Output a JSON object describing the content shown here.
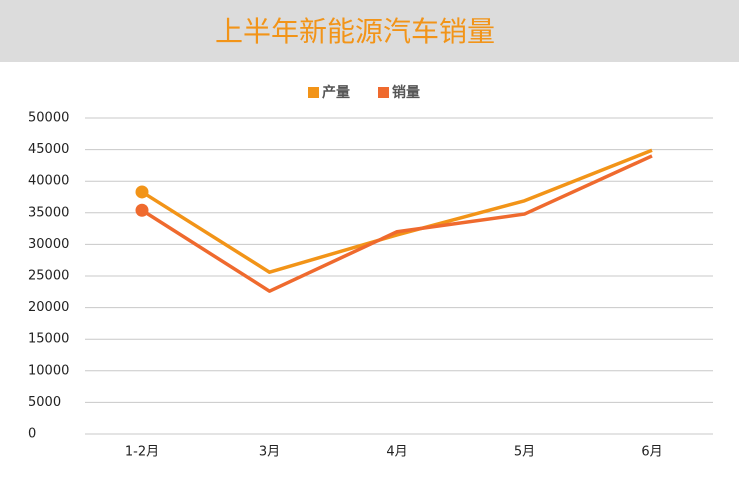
{
  "chart_data": {
    "type": "line",
    "title": "上半年新能源汽车销量",
    "categories": [
      "1-2月",
      "3月",
      "4月",
      "5月",
      "6月"
    ],
    "series": [
      {
        "name": "产量",
        "color": "#f29418",
        "values": [
          38300,
          25600,
          31500,
          36900,
          44900
        ]
      },
      {
        "name": "销量",
        "color": "#ef6a2e",
        "values": [
          35400,
          22600,
          32000,
          34800,
          44000
        ]
      }
    ],
    "ylim": [
      0,
      50000
    ],
    "yticks": [
      0,
      5000,
      10000,
      15000,
      20000,
      25000,
      30000,
      35000,
      40000,
      45000,
      50000
    ],
    "grid": true,
    "legend": "top"
  }
}
